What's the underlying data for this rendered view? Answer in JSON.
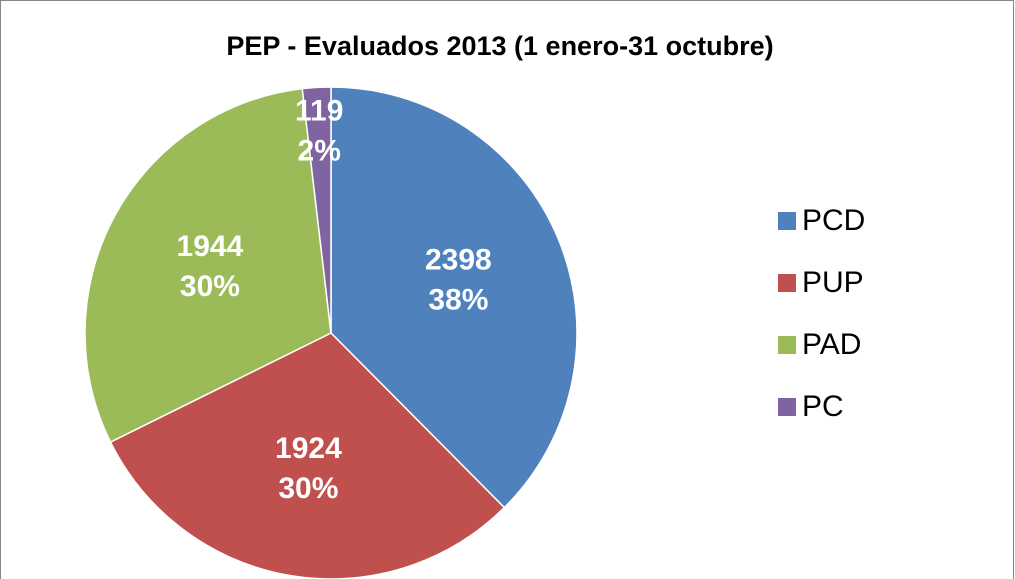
{
  "chart_data": {
    "type": "pie",
    "title": "PEP - Evaluados 2013 (1 enero-31 octubre)",
    "categories": [
      "PCD",
      "PUP",
      "PAD",
      "PC"
    ],
    "values": [
      2398,
      1924,
      1944,
      119
    ],
    "percent_labels": [
      "38%",
      "30%",
      "30%",
      "2%"
    ],
    "colors": [
      "#4f81bd",
      "#c0504d",
      "#9bbb59",
      "#8064a2"
    ],
    "legend": "right"
  }
}
